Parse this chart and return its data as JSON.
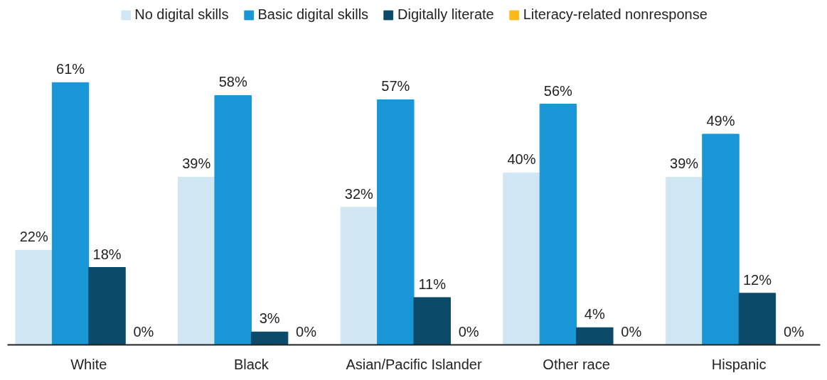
{
  "chart_data": {
    "type": "bar",
    "categories": [
      "White",
      "Black",
      "Asian/Pacific Islander",
      "Other race",
      "Hispanic"
    ],
    "series": [
      {
        "name": "No digital skills",
        "color": "#d0e7f3",
        "values": [
          22,
          39,
          32,
          40,
          39
        ],
        "value_labels": [
          "22%",
          "39%",
          "32%",
          "40%",
          "39%"
        ]
      },
      {
        "name": "Basic digital skills",
        "color": "#1896d5",
        "values": [
          61,
          58,
          57,
          56,
          49
        ],
        "value_labels": [
          "61%",
          "58%",
          "57%",
          "56%",
          "49%"
        ]
      },
      {
        "name": "Digitally literate",
        "color": "#0c4a6a",
        "values": [
          18,
          3,
          11,
          4,
          12
        ],
        "value_labels": [
          "18%",
          "3%",
          "11%",
          "4%",
          "12%"
        ]
      },
      {
        "name": "Literacy-related nonresponse",
        "color": "#fbb917",
        "values": [
          0,
          0,
          0,
          0,
          0
        ],
        "value_labels": [
          "0%",
          "0%",
          "0%",
          "0%",
          "0%"
        ]
      }
    ],
    "legend": "top"
  }
}
